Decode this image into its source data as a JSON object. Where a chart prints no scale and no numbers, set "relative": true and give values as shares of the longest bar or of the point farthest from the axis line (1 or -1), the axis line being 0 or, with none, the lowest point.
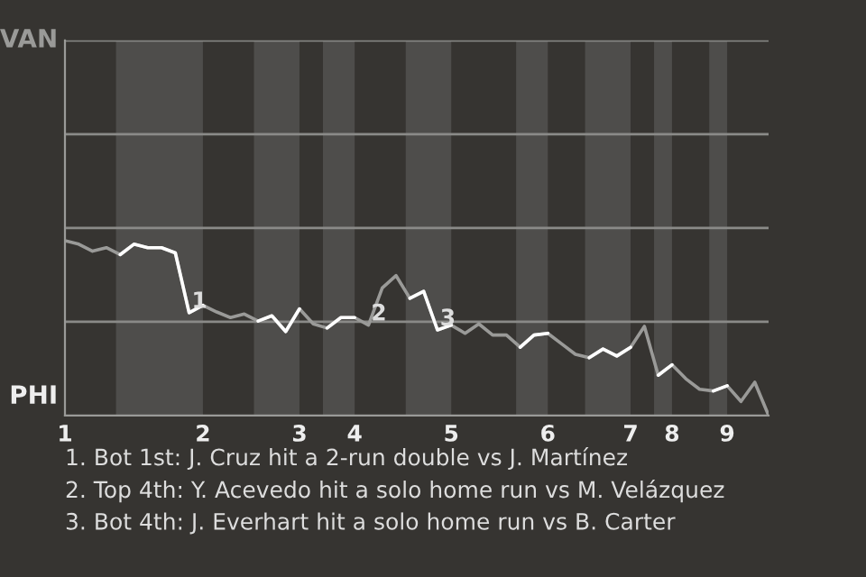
{
  "chart_data": {
    "type": "line",
    "relative": true,
    "categories": [
      "1",
      null,
      null,
      null,
      null,
      null,
      null,
      null,
      null,
      null,
      "2",
      null,
      null,
      null,
      null,
      null,
      null,
      "3",
      null,
      null,
      null,
      "4",
      null,
      null,
      null,
      null,
      null,
      null,
      "5",
      null,
      null,
      null,
      null,
      null,
      null,
      "6",
      null,
      null,
      null,
      null,
      null,
      "7",
      null,
      null,
      "8",
      null,
      null,
      null,
      "9",
      null,
      null,
      null
    ],
    "series": [
      {
        "color": "#9a9a98",
        "values": [
          1.0,
          0.98,
          0.94,
          0.96,
          0.92,
          0.98,
          0.96,
          0.96,
          0.93,
          0.588,
          0.63,
          0.592,
          0.56,
          0.58,
          0.54,
          0.57,
          0.48,
          0.61,
          0.524,
          0.5,
          0.56,
          0.56,
          0.517,
          0.73,
          0.8,
          0.67,
          0.71,
          0.489,
          0.517,
          0.47,
          0.524,
          0.46,
          0.46,
          0.39,
          0.46,
          0.47,
          0.41,
          0.35,
          0.33,
          0.38,
          0.34,
          0.39,
          0.51,
          0.23,
          0.29,
          0.21,
          0.15,
          0.14,
          0.17,
          0.08,
          0.19,
          0
        ]
      },
      {
        "color": "#ffffff",
        "values": [
          null,
          null,
          null,
          null,
          0.92,
          0.98,
          0.96,
          0.96,
          0.93,
          0.588,
          0.63,
          null,
          null,
          null,
          0.54,
          0.57,
          0.48,
          0.61,
          null,
          0.5,
          0.56,
          0.56,
          null,
          null,
          null,
          0.67,
          0.71,
          0.489,
          0.517,
          null,
          null,
          null,
          null,
          0.39,
          0.46,
          0.47,
          null,
          null,
          0.33,
          0.38,
          0.34,
          0.39,
          null,
          0.23,
          0.29,
          null,
          null,
          0.14,
          0.17,
          null,
          null,
          null
        ]
      }
    ],
    "ref_lines": [
      {
        "axis": "y",
        "value": 0.536,
        "color": "#8a8a88"
      },
      {
        "axis": "y",
        "value": 1.073,
        "color": "#8a8a88"
      },
      {
        "axis": "y",
        "value": 1.609,
        "color": "#8a8a88"
      },
      {
        "axis": "y",
        "value": 2.146,
        "color": "#8a8a88"
      }
    ],
    "annotations": [
      "VAN",
      "PHI",
      {
        "text": "1",
        "y": 0.588
      },
      {
        "text": "2",
        "y": 0.517
      },
      {
        "text": "3",
        "y": 0.489
      },
      "1. Bot 1st: J. Cruz hit a 2-run double vs J. Martínez",
      "2. Top 4th: Y. Acevedo hit a solo home run vs M. Velázquez",
      "3. Bot 4th: J. Everhart hit a solo home run vs B. Carter"
    ]
  }
}
